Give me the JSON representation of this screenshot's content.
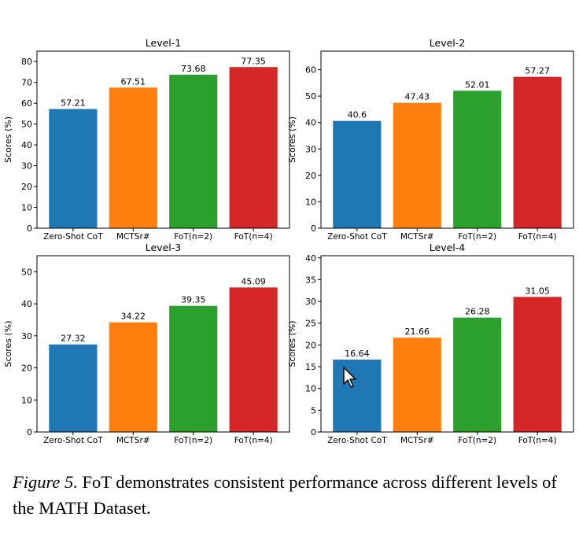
{
  "chart_data": [
    {
      "type": "bar",
      "title": "Level-1",
      "ylabel": "Scores (%)",
      "categories": [
        "Zero-Shot CoT",
        "MCTSr#",
        "FoT(n=2)",
        "FoT(n=4)"
      ],
      "values": [
        57.21,
        67.51,
        73.68,
        77.35
      ],
      "value_labels": [
        "57.21",
        "67.51",
        "73.68",
        "77.35"
      ],
      "colors": [
        "#1f77b4",
        "#ff7f0e",
        "#2ca02c",
        "#d62728"
      ],
      "ylim": [
        0,
        85
      ],
      "yticks": [
        0,
        10,
        20,
        30,
        40,
        50,
        60,
        70,
        80
      ]
    },
    {
      "type": "bar",
      "title": "Level-2",
      "ylabel": "Scores (%)",
      "categories": [
        "Zero-Shot CoT",
        "MCTSr#",
        "FoT(n=2)",
        "FoT(n=4)"
      ],
      "values": [
        40.6,
        47.43,
        52.01,
        57.27
      ],
      "value_labels": [
        "40.6",
        "47.43",
        "52.01",
        "57.27"
      ],
      "colors": [
        "#1f77b4",
        "#ff7f0e",
        "#2ca02c",
        "#d62728"
      ],
      "ylim": [
        0,
        67
      ],
      "yticks": [
        0,
        10,
        20,
        30,
        40,
        50,
        60
      ]
    },
    {
      "type": "bar",
      "title": "Level-3",
      "ylabel": "Scores (%)",
      "categories": [
        "Zero-Shot CoT",
        "MCTSr#",
        "FoT(n=2)",
        "FoT(n=4)"
      ],
      "values": [
        27.32,
        34.22,
        39.35,
        45.09
      ],
      "value_labels": [
        "27.32",
        "34.22",
        "39.35",
        "45.09"
      ],
      "colors": [
        "#1f77b4",
        "#ff7f0e",
        "#2ca02c",
        "#d62728"
      ],
      "ylim": [
        0,
        55
      ],
      "yticks": [
        0,
        10,
        20,
        30,
        40,
        50
      ]
    },
    {
      "type": "bar",
      "title": "Level-4",
      "ylabel": "Scores (%)",
      "categories": [
        "Zero-Shot CoT",
        "MCTSr#",
        "FoT(n=2)",
        "FoT(n=4)"
      ],
      "values": [
        16.64,
        21.66,
        26.28,
        31.05
      ],
      "value_labels": [
        "16.64",
        "21.66",
        "26.28",
        "31.05"
      ],
      "colors": [
        "#1f77b4",
        "#ff7f0e",
        "#2ca02c",
        "#d62728"
      ],
      "ylim": [
        0,
        40.5
      ],
      "yticks": [
        0,
        5,
        10,
        15,
        20,
        25,
        30,
        35,
        40
      ]
    }
  ],
  "caption": {
    "label": "Figure 5.",
    "text": "FoT demonstrates consistent performance across different levels of the MATH Dataset."
  }
}
